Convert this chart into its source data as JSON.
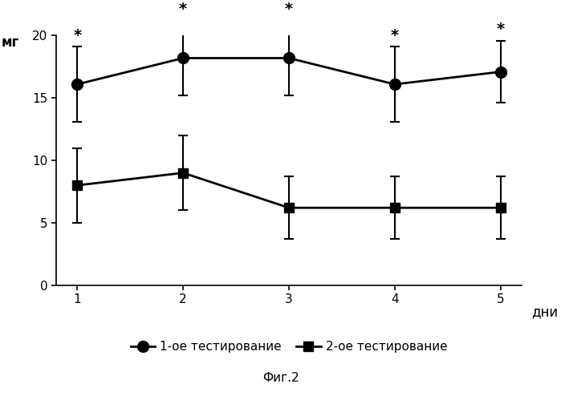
{
  "x": [
    1,
    2,
    3,
    4,
    5
  ],
  "series1_y": [
    16.1,
    18.2,
    18.2,
    16.1,
    17.1
  ],
  "series1_yerr": [
    3.0,
    3.0,
    3.0,
    3.0,
    2.5
  ],
  "series2_y": [
    8.0,
    9.0,
    6.2,
    6.2,
    6.2
  ],
  "series2_yerr": [
    3.0,
    3.0,
    2.5,
    2.5,
    2.5
  ],
  "star_positions_s1": [
    1,
    2,
    3,
    4,
    5
  ],
  "ylabel": "мг",
  "xlabel": "дни",
  "ylim": [
    0,
    20
  ],
  "yticks": [
    0,
    5,
    10,
    15,
    20
  ],
  "xticks": [
    1,
    2,
    3,
    4,
    5
  ],
  "legend1": "1-ое тестирование",
  "legend2": "2-ое тестирование",
  "caption": "Фиг.2",
  "line_color": "#000000",
  "background_color": "#ffffff"
}
